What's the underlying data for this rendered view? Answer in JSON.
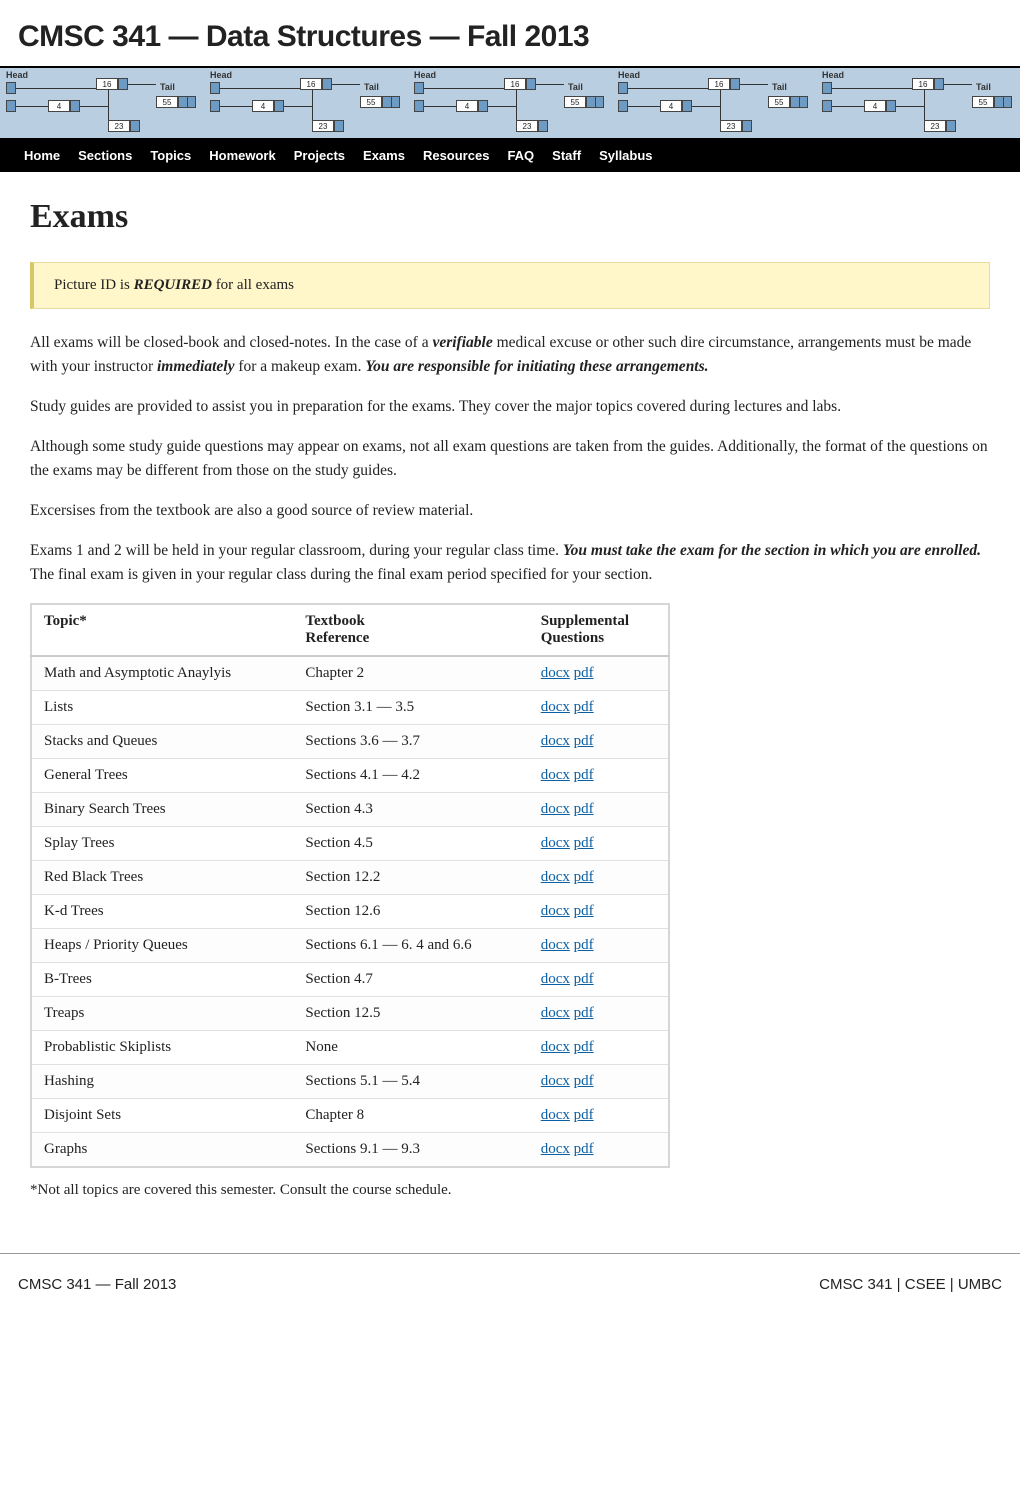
{
  "title": "CMSC 341 — Data Structures — Fall 2013",
  "nav": {
    "items": [
      "Home",
      "Sections",
      "Topics",
      "Homework",
      "Projects",
      "Exams",
      "Resources",
      "FAQ",
      "Staff",
      "Syllabus"
    ]
  },
  "heading": "Exams",
  "alert": {
    "prefix": "Picture ID is ",
    "required": "REQUIRED",
    "suffix": " for all exams"
  },
  "paragraphs": {
    "p1a": "All exams will be closed-book and closed-notes. In the case of a ",
    "p1b": "verifiable",
    "p1c": " medical excuse or other such dire circumstance, arrangements must be made with your instructor ",
    "p1d": "immediately",
    "p1e": " for a makeup exam. ",
    "p1f": "You are responsible for initiating these arrangements.",
    "p2": "Study guides are provided to assist you in preparation for the exams. They cover the major topics covered during lectures and labs.",
    "p3": "Although some study guide questions may appear on exams, not all exam questions are taken from the guides. Additionally, the format of the questions on the exams may be different from those on the study guides.",
    "p4": "Excersises from the textbook are also a good source of review material.",
    "p5a": "Exams 1 and 2 will be held in your regular classroom, during your regular class time. ",
    "p5b": "You must take the exam for the section in which you are enrolled.",
    "p5c": " The final exam is given in your regular class during the final exam period specified for your section."
  },
  "table": {
    "headers": {
      "c1": "Topic*",
      "c2": "Textbook\nReference",
      "c3": "Supplemental\nQuestions"
    },
    "link_docx": "docx",
    "link_pdf": "pdf",
    "rows": [
      {
        "topic": "Math and Asymptotic Anaylyis",
        "ref": "Chapter 2"
      },
      {
        "topic": "Lists",
        "ref": "Section 3.1 — 3.5"
      },
      {
        "topic": "Stacks and Queues",
        "ref": "Sections 3.6 — 3.7"
      },
      {
        "topic": "General Trees",
        "ref": "Sections 4.1 — 4.2"
      },
      {
        "topic": "Binary Search Trees",
        "ref": "Section 4.3"
      },
      {
        "topic": "Splay Trees",
        "ref": "Section 4.5"
      },
      {
        "topic": "Red Black Trees",
        "ref": "Section 12.2"
      },
      {
        "topic": "K-d Trees",
        "ref": "Section 12.6"
      },
      {
        "topic": "Heaps / Priority Queues",
        "ref": "Sections 6.1 — 6. 4 and 6.6"
      },
      {
        "topic": "B-Trees",
        "ref": "Section 4.7"
      },
      {
        "topic": "Treaps",
        "ref": "Section 12.5"
      },
      {
        "topic": "Probablistic Skiplists",
        "ref": "None"
      },
      {
        "topic": "Hashing",
        "ref": "Sections 5.1 — 5.4"
      },
      {
        "topic": "Disjoint Sets",
        "ref": "Chapter 8"
      },
      {
        "topic": "Graphs",
        "ref": "Sections 9.1 — 9.3"
      }
    ]
  },
  "footnote": "*Not all topics are covered this semester. Consult the course schedule.",
  "footer": {
    "left": "CMSC 341 — Fall 2013",
    "right": "CMSC 341 | CSEE | UMBC"
  },
  "theme": {
    "link_color": "#0b5fa5",
    "alert_bg": "#fff7c9",
    "banner_bg": "#b9cfe1",
    "nav_bg": "#000000"
  },
  "banner": {
    "labels": {
      "head": "Head",
      "tail": "Tail"
    },
    "nodes": [
      "16",
      "4",
      "55",
      "23"
    ]
  }
}
